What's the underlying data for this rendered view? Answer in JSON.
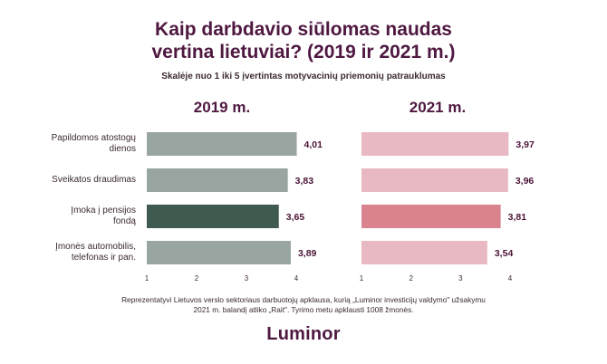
{
  "title_line1": "Kaip darbdavio siūlomas naudas",
  "title_line2": "vertina lietuviai? (2019 ir 2021 m.)",
  "subtitle": "Skalėje nuo 1 iki 5 įvertintas motyvacinių priemonių patrauklumas",
  "categories": [
    "Papildomos atostogų dienos",
    "Sveikatos draudimas",
    "Įmoka į pensijos fondą",
    "Įmonės automobilis, telefonas ir pan."
  ],
  "category_lines": [
    [
      "Papildomos atostogų",
      "dienos"
    ],
    [
      "Sveikatos draudimas"
    ],
    [
      "Įmoka į pensijos",
      "fondą"
    ],
    [
      "Įmonės automobilis,",
      "telefonas ir pan."
    ]
  ],
  "chart_data": [
    {
      "type": "bar",
      "orientation": "horizontal",
      "title": "2019 m.",
      "categories": [
        "Papildomos atostogų dienos",
        "Sveikatos draudimas",
        "Įmoka į pensijos fondą",
        "Įmonės automobilis, telefonas ir pan."
      ],
      "values": [
        4.01,
        3.83,
        3.65,
        3.89
      ],
      "value_labels": [
        "4,01",
        "3,83",
        "3,65",
        "3,89"
      ],
      "xlim": [
        1,
        4
      ],
      "xticks": [
        "1",
        "2",
        "3",
        "4"
      ],
      "colors": [
        "#98a5a0",
        "#98a5a0",
        "#3f5a4f",
        "#98a5a0"
      ],
      "grid": false
    },
    {
      "type": "bar",
      "orientation": "horizontal",
      "title": "2021 m.",
      "categories": [
        "Papildomos atostogų dienos",
        "Sveikatos draudimas",
        "Įmoka į pensijos fondą",
        "Įmonės automobilis, telefonas ir pan."
      ],
      "values": [
        3.97,
        3.96,
        3.81,
        3.54
      ],
      "value_labels": [
        "3,97",
        "3,96",
        "3,81",
        "3,54"
      ],
      "xlim": [
        1,
        4
      ],
      "xticks": [
        "1",
        "2",
        "3",
        "4"
      ],
      "colors": [
        "#e8b9c3",
        "#e8b9c3",
        "#d9838f",
        "#e8b9c3"
      ],
      "grid": false
    }
  ],
  "footnote_line1": "Reprezentatyvi Lietuvos verslo sektoriaus darbuotojų apklausa, kurią „Luminor investicijų valdymo\" užsakymu",
  "footnote_line2": "2021 m. balandį atliko „Rait\". Tyrimo metu apklausti 1008 žmonės.",
  "logo": "Luminor"
}
